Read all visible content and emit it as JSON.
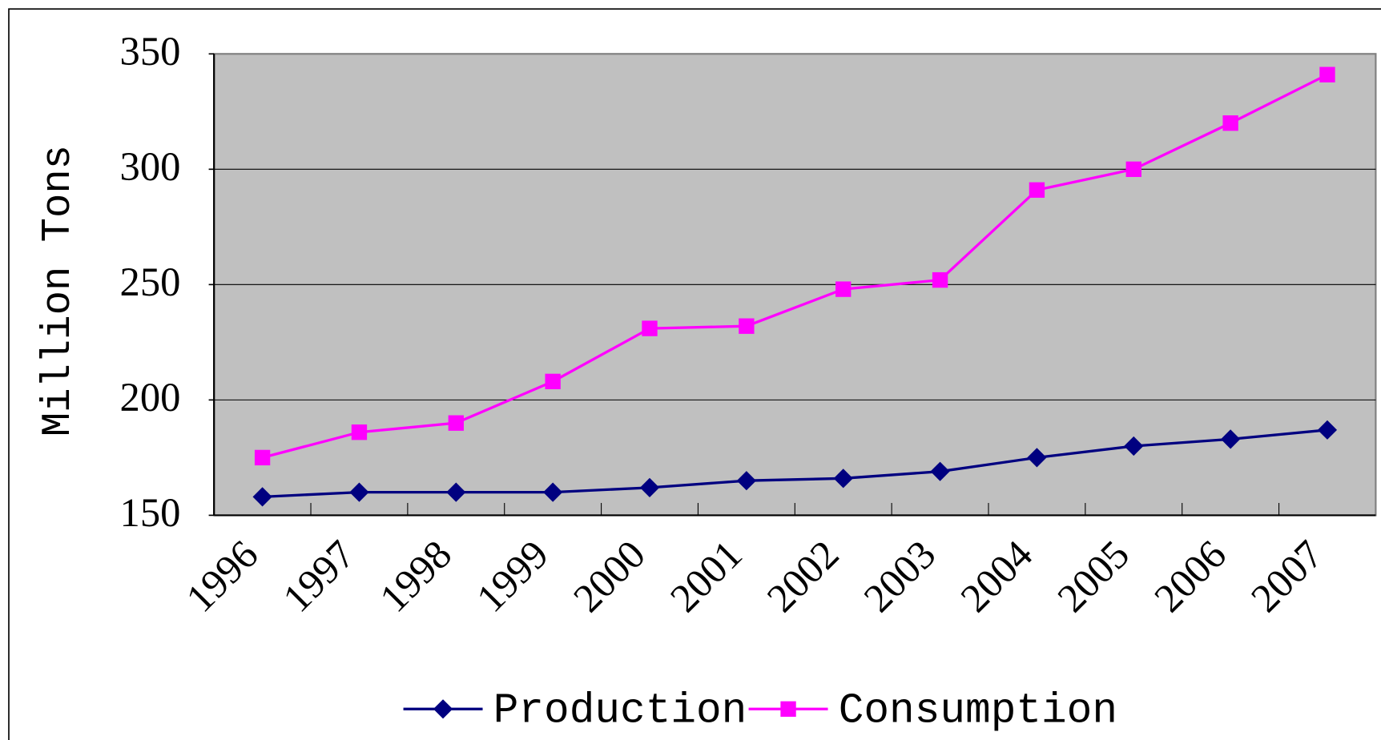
{
  "chart_data": {
    "type": "line",
    "y_label": "Million Tons",
    "categories": [
      "1996",
      "1997",
      "1998",
      "1999",
      "2000",
      "2001",
      "2002",
      "2003",
      "2004",
      "2005",
      "2006",
      "2007"
    ],
    "series": [
      {
        "name": "Production",
        "color": "#000080",
        "marker": "diamond",
        "values": [
          158,
          160,
          160,
          160,
          162,
          165,
          166,
          169,
          175,
          180,
          183,
          187
        ]
      },
      {
        "name": "Consumption",
        "color": "#ff00ff",
        "marker": "square",
        "values": [
          175,
          186,
          190,
          208,
          231,
          232,
          248,
          252,
          291,
          300,
          320,
          341
        ]
      }
    ],
    "ylim": [
      150,
      350
    ],
    "yticks": [
      150,
      200,
      250,
      300,
      350
    ],
    "grid": true,
    "plot_background": "#c0c0c0",
    "legend": "bottom"
  }
}
